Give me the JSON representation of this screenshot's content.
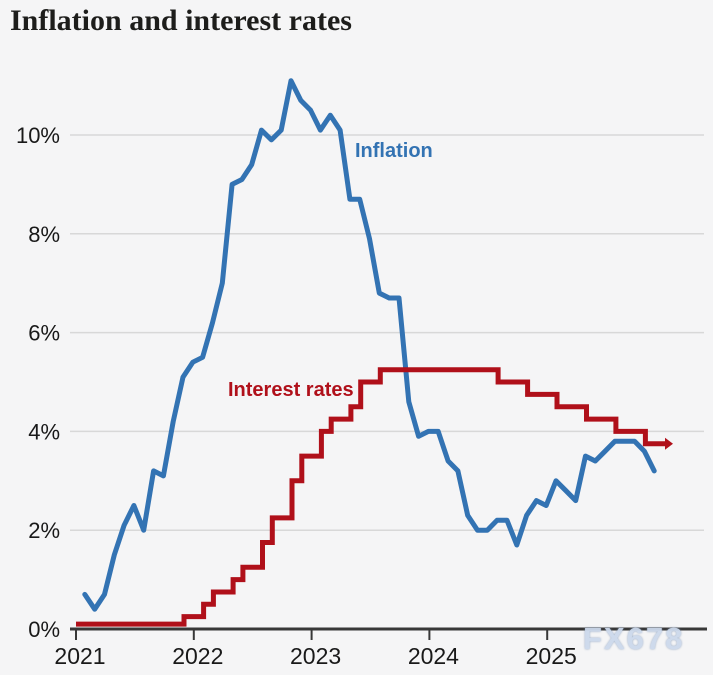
{
  "title": "Inflation and interest rates",
  "watermark": "FX678",
  "colors": {
    "inflation": "#3373b3",
    "rates": "#b0101a",
    "grid": "#d8d8d8",
    "axis": "#383838",
    "tick_text": "#191919",
    "title_text": "#1d1d1b",
    "background": "#f5f5f6",
    "watermark": "#ccd9ec"
  },
  "chart_data": {
    "type": "line",
    "title": "Inflation and interest rates",
    "x_axis": {
      "tick_labels": [
        "2021",
        "2022",
        "2023",
        "2024",
        "2025"
      ],
      "tick_years": [
        2021,
        2022,
        2023,
        2024,
        2025
      ],
      "range": [
        "2021-01",
        "2026-01"
      ],
      "grid": false
    },
    "y_axis": {
      "tick_labels": [
        "0%",
        "2%",
        "4%",
        "6%",
        "8%",
        "10%"
      ],
      "tick_values": [
        0,
        2,
        4,
        6,
        8,
        10
      ],
      "unit": "%",
      "ylim": [
        0,
        11.6
      ],
      "grid": true
    },
    "legend_position": "inline-annotations",
    "annotations": [
      {
        "text": "Inflation",
        "color": "#3373b3"
      },
      {
        "text": "Interest rates",
        "color": "#b0101a"
      }
    ],
    "series": [
      {
        "name": "Inflation",
        "kind": "line",
        "color": "#3373b3",
        "unit": "%",
        "start": "2021-01",
        "frequency": "monthly",
        "values": [
          0.7,
          0.4,
          0.7,
          1.5,
          2.1,
          2.5,
          2.0,
          3.2,
          3.1,
          4.2,
          5.1,
          5.4,
          5.5,
          6.2,
          7.0,
          9.0,
          9.1,
          9.4,
          10.1,
          9.9,
          10.1,
          11.1,
          10.7,
          10.5,
          10.1,
          10.4,
          10.1,
          8.7,
          8.7,
          7.9,
          6.8,
          6.7,
          6.7,
          4.6,
          3.9,
          4.0,
          4.0,
          3.4,
          3.2,
          2.3,
          2.0,
          2.0,
          2.2,
          2.2,
          1.7,
          2.3,
          2.6,
          2.5,
          3.0,
          2.8,
          2.6,
          3.5,
          3.4,
          3.6,
          3.8,
          3.8,
          3.8,
          3.6,
          3.2
        ]
      },
      {
        "name": "Interest rates",
        "kind": "step",
        "color": "#b0101a",
        "unit": "%",
        "initial": {
          "month": "2021-01",
          "rate": 0.1
        },
        "steps": [
          {
            "month": "2021-12",
            "rate": 0.25
          },
          {
            "month": "2022-02",
            "rate": 0.5
          },
          {
            "month": "2022-03",
            "rate": 0.75
          },
          {
            "month": "2022-05",
            "rate": 1.0
          },
          {
            "month": "2022-06",
            "rate": 1.25
          },
          {
            "month": "2022-08",
            "rate": 1.75
          },
          {
            "month": "2022-09",
            "rate": 2.25
          },
          {
            "month": "2022-11",
            "rate": 3.0
          },
          {
            "month": "2022-12",
            "rate": 3.5
          },
          {
            "month": "2023-02",
            "rate": 4.0
          },
          {
            "month": "2023-03",
            "rate": 4.25
          },
          {
            "month": "2023-05",
            "rate": 4.5
          },
          {
            "month": "2023-06",
            "rate": 5.0
          },
          {
            "month": "2023-08",
            "rate": 5.25
          },
          {
            "month": "2024-08",
            "rate": 5.0
          },
          {
            "month": "2024-11",
            "rate": 4.75
          },
          {
            "month": "2025-02",
            "rate": 4.5
          },
          {
            "month": "2025-05",
            "rate": 4.25
          },
          {
            "month": "2025-08",
            "rate": 4.0
          },
          {
            "month": "2025-11",
            "rate": 3.75
          }
        ],
        "end": "2026-01"
      }
    ]
  }
}
